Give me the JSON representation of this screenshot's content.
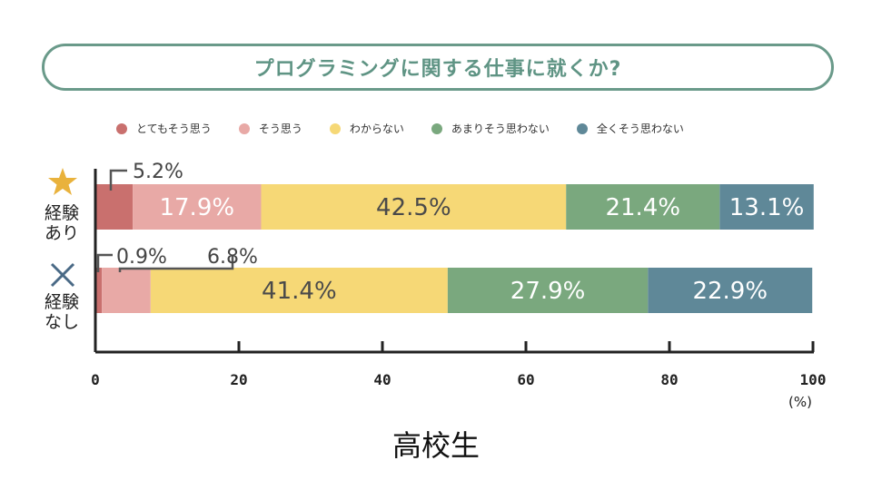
{
  "title": "プログラミングに関する仕事に就くか?",
  "subtitle": "高校生",
  "legend": [
    {
      "label": "とてもそう思う",
      "color": "#c9706e"
    },
    {
      "label": "そう思う",
      "color": "#e8a9a6"
    },
    {
      "label": "わからない",
      "color": "#f6d876"
    },
    {
      "label": "あまりそう思わない",
      "color": "#7aa87e"
    },
    {
      "label": "全くそう思わない",
      "color": "#5f8898"
    }
  ],
  "rows": [
    {
      "label_line1": "経験",
      "label_line2": "あり",
      "icon": "star-icon",
      "icon_color": "#e9b23c"
    },
    {
      "label_line1": "経験",
      "label_line2": "なし",
      "icon": "cross-icon",
      "icon_color": "#4a6a86"
    }
  ],
  "chart_data": {
    "type": "bar",
    "orientation": "horizontal",
    "stacked": true,
    "categories": [
      "経験あり",
      "経験なし"
    ],
    "series": [
      {
        "name": "とてもそう思う",
        "values": [
          5.2,
          0.9
        ],
        "labels": [
          "5.2%",
          "0.9%"
        ]
      },
      {
        "name": "そう思う",
        "values": [
          17.9,
          6.8
        ],
        "labels": [
          "17.9%",
          "6.8%"
        ]
      },
      {
        "name": "わからない",
        "values": [
          42.5,
          41.4
        ],
        "labels": [
          "42.5%",
          "41.4%"
        ]
      },
      {
        "name": "あまりそう思わない",
        "values": [
          21.4,
          27.9
        ],
        "labels": [
          "21.4%",
          "27.9%"
        ]
      },
      {
        "name": "全くそう思わない",
        "values": [
          13.1,
          22.9
        ],
        "labels": [
          "13.1%",
          "22.9%"
        ]
      }
    ],
    "xlim": [
      0,
      100
    ],
    "xticks": [
      "0",
      "20",
      "40",
      "60",
      "80",
      "100"
    ],
    "xunit": "(%)",
    "legend_position": "top"
  }
}
